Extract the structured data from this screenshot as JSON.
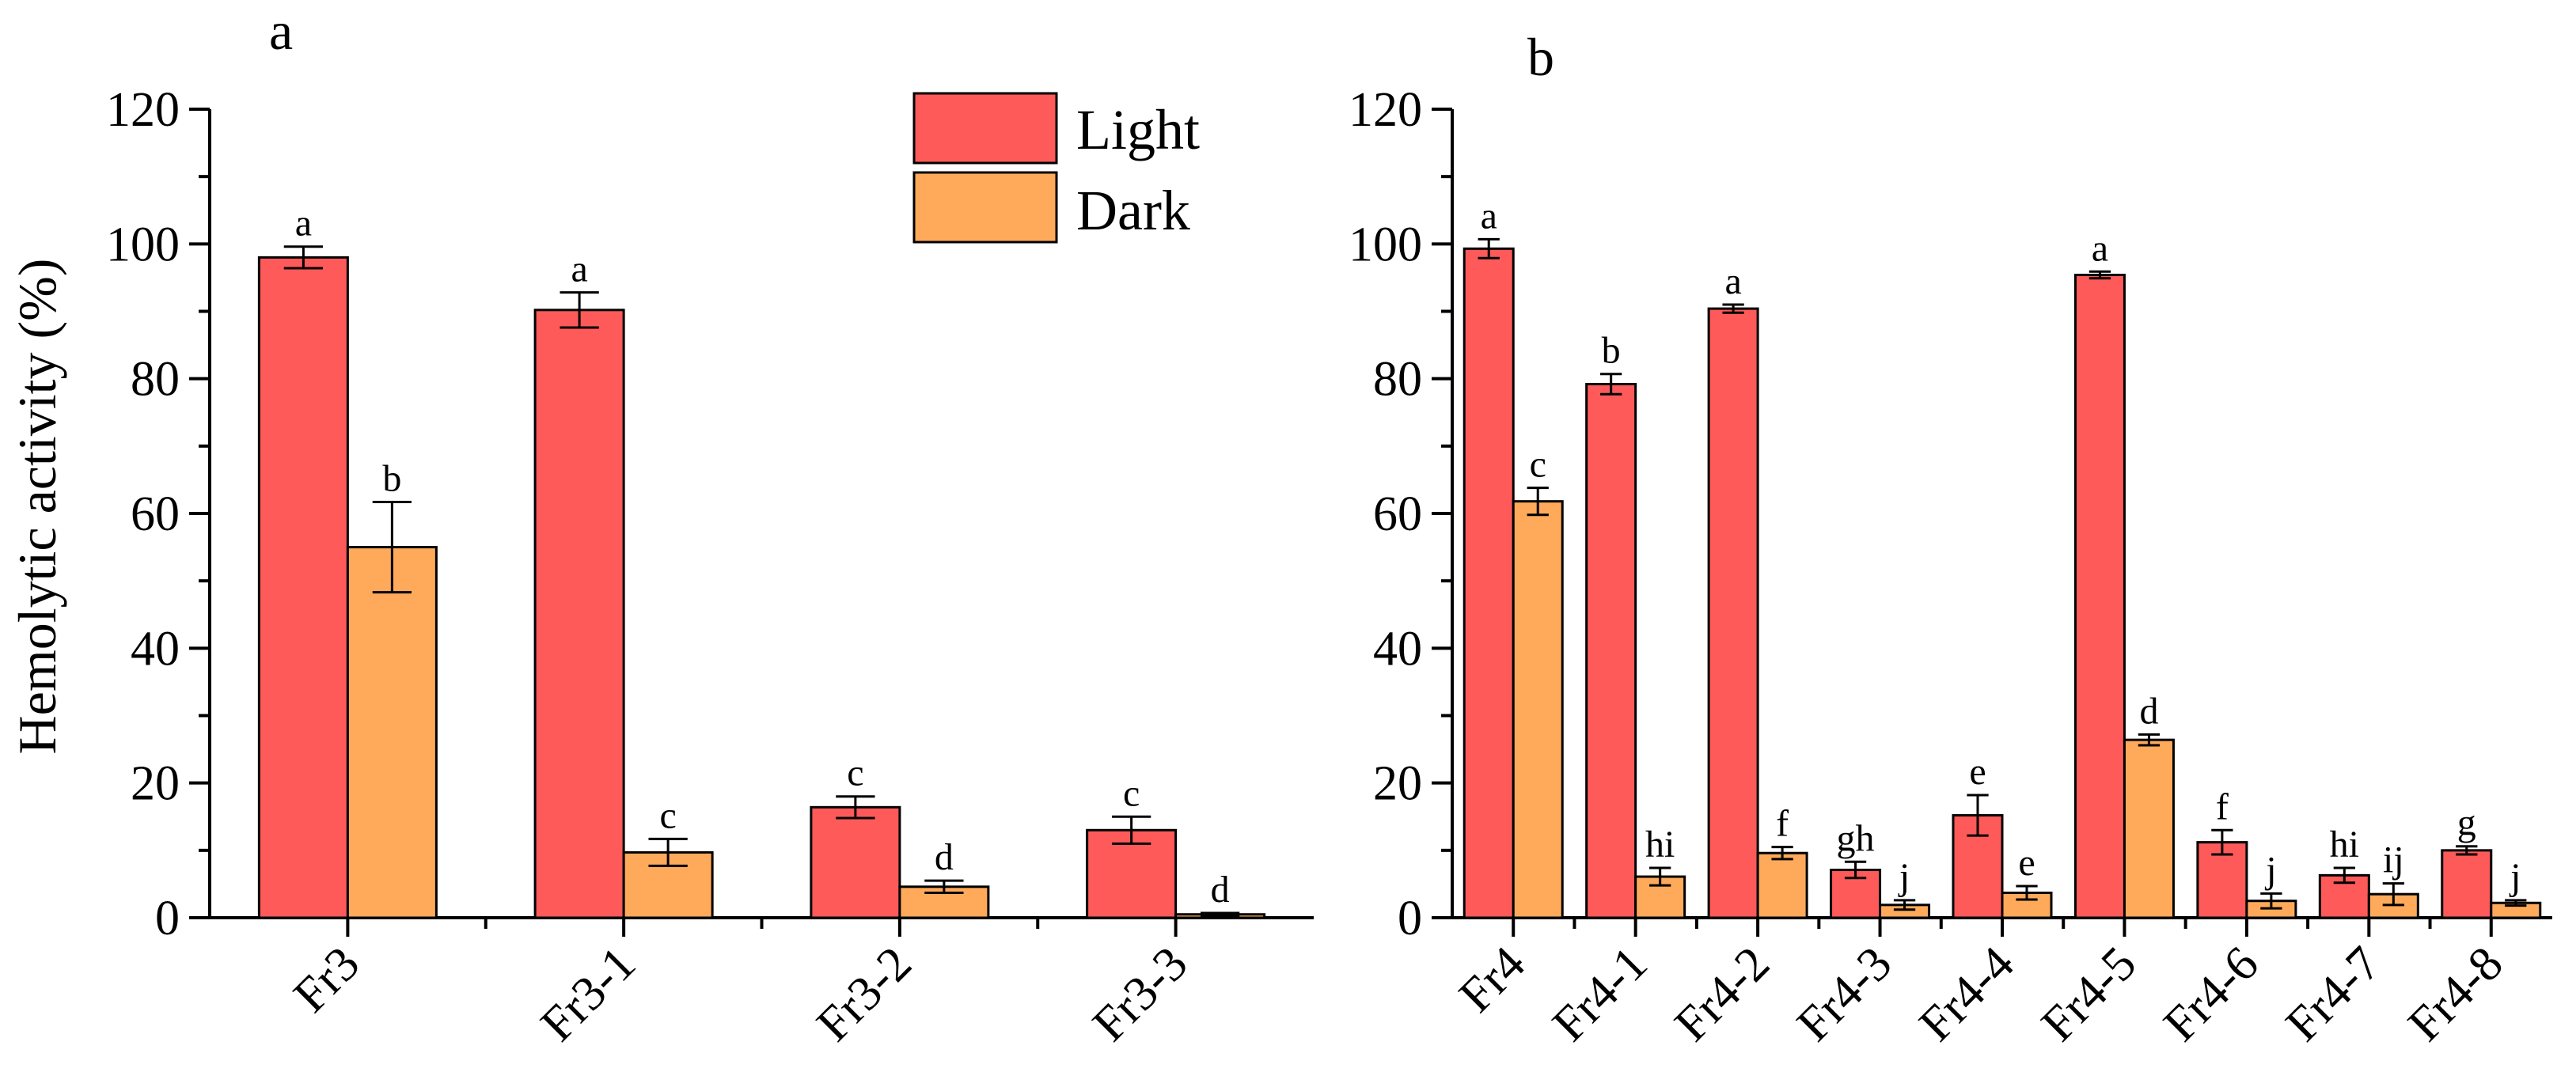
{
  "colors": {
    "light": "#FF5A5A",
    "dark": "#FFAA5A",
    "axis": "#000000"
  },
  "chart_data": [
    {
      "type": "bar",
      "panel": "a",
      "ylabel": "Hemolytic activity (%)",
      "ylim": [
        0,
        120
      ],
      "yticks": [
        0,
        20,
        40,
        60,
        80,
        100,
        120
      ],
      "categories": [
        "Fr3",
        "Fr3-1",
        "Fr3-2",
        "Fr3-3"
      ],
      "legend": {
        "position": "top-right",
        "entries": [
          "Light",
          "Dark"
        ]
      },
      "series": [
        {
          "name": "Light",
          "values": [
            98.0,
            90.2,
            16.4,
            13.0
          ],
          "errors": [
            1.6,
            2.6,
            1.6,
            2.0
          ],
          "labels": [
            "a",
            "a",
            "c",
            "c"
          ]
        },
        {
          "name": "Dark",
          "values": [
            55.0,
            9.7,
            4.6,
            0.5
          ],
          "errors": [
            6.7,
            2.0,
            0.9,
            0.2
          ],
          "labels": [
            "b",
            "c",
            "d",
            "d"
          ]
        }
      ]
    },
    {
      "type": "bar",
      "panel": "b",
      "ylabel": "",
      "ylim": [
        0,
        120
      ],
      "yticks": [
        0,
        20,
        40,
        60,
        80,
        100,
        120
      ],
      "categories": [
        "Fr4",
        "Fr4-1",
        "Fr4-2",
        "Fr4-3",
        "Fr4-4",
        "Fr4-5",
        "Fr4-6",
        "Fr4-7",
        "Fr4-8"
      ],
      "series": [
        {
          "name": "Light",
          "values": [
            99.3,
            79.2,
            90.4,
            7.1,
            15.2,
            95.4,
            11.2,
            6.3,
            10.0
          ],
          "errors": [
            1.4,
            1.5,
            0.6,
            1.2,
            3.0,
            0.5,
            1.8,
            1.1,
            0.6
          ],
          "labels": [
            "a",
            "b",
            "a",
            "gh",
            "e",
            "a",
            "f",
            "hi",
            "g"
          ]
        },
        {
          "name": "Dark",
          "values": [
            61.8,
            6.1,
            9.6,
            1.9,
            3.7,
            26.4,
            2.5,
            3.5,
            2.2
          ],
          "errors": [
            2.0,
            1.3,
            0.9,
            0.7,
            1.0,
            0.8,
            1.1,
            1.6,
            0.4
          ],
          "labels": [
            "c",
            "hi",
            "f",
            "j",
            "e",
            "d",
            "j",
            "ij",
            "j"
          ]
        }
      ]
    }
  ]
}
